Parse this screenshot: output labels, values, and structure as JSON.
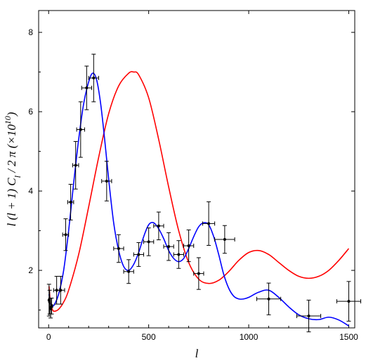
{
  "chart_data": {
    "type": "line",
    "xlabel": "l",
    "ylabel": "l (l + 1) C",
    "ylabel_sub": "l",
    "ylabel_tail": " / 2 π (×10",
    "ylabel_sup": "10",
    "ylabel_close": ")",
    "xlim": [
      -50,
      1530
    ],
    "ylim": [
      0.55,
      8.55
    ],
    "xticks": [
      0,
      500,
      1000,
      1500
    ],
    "xtick_labels": [
      "0",
      "500",
      "1000",
      "1500"
    ],
    "yticks": [
      2,
      4,
      6,
      8
    ],
    "ytick_labels": [
      "2",
      "4",
      "6",
      "8"
    ],
    "grid": false,
    "legend": "none",
    "series": [
      {
        "color": "#ff0000",
        "x": [
          2,
          5,
          10,
          20,
          30,
          50,
          75,
          100,
          150,
          200,
          250,
          300,
          350,
          400,
          425,
          450,
          500,
          550,
          600,
          650,
          700,
          750,
          800,
          850,
          900,
          950,
          1000,
          1050,
          1100,
          1150,
          1200,
          1250,
          1300,
          1350,
          1400,
          1450,
          1500
        ],
        "y": [
          1.6,
          1.4,
          1.15,
          1.0,
          0.97,
          1.02,
          1.2,
          1.5,
          2.4,
          3.6,
          4.85,
          5.95,
          6.65,
          6.97,
          7.0,
          6.93,
          6.35,
          5.3,
          4.1,
          3.0,
          2.2,
          1.78,
          1.67,
          1.75,
          1.97,
          2.25,
          2.45,
          2.5,
          2.4,
          2.2,
          2.0,
          1.85,
          1.8,
          1.85,
          2.0,
          2.25,
          2.55
        ]
      },
      {
        "color": "#0000ff",
        "x": [
          2,
          10,
          20,
          30,
          50,
          75,
          100,
          125,
          150,
          175,
          200,
          220,
          240,
          260,
          280,
          300,
          325,
          350,
          375,
          400,
          425,
          450,
          475,
          500,
          525,
          550,
          575,
          600,
          625,
          650,
          675,
          700,
          725,
          750,
          775,
          800,
          825,
          850,
          875,
          900,
          925,
          950,
          975,
          1000,
          1050,
          1100,
          1150,
          1200,
          1250,
          1300,
          1350,
          1400,
          1450,
          1500
        ],
        "y": [
          1.4,
          1.15,
          1.1,
          1.15,
          1.4,
          2.0,
          3.0,
          4.2,
          5.3,
          6.2,
          6.75,
          6.97,
          6.8,
          6.2,
          5.3,
          4.3,
          3.2,
          2.5,
          2.1,
          2.0,
          2.15,
          2.45,
          2.85,
          3.15,
          3.2,
          3.05,
          2.8,
          2.5,
          2.3,
          2.22,
          2.3,
          2.55,
          2.85,
          3.1,
          3.2,
          3.15,
          2.85,
          2.4,
          1.9,
          1.55,
          1.35,
          1.28,
          1.28,
          1.32,
          1.45,
          1.5,
          1.32,
          1.08,
          0.88,
          0.78,
          0.76,
          0.82,
          0.75,
          0.6
        ]
      }
    ],
    "errorbars": {
      "x": [
        2,
        5,
        10,
        15,
        40,
        60,
        85,
        110,
        135,
        160,
        190,
        225,
        290,
        350,
        400,
        450,
        500,
        550,
        600,
        650,
        700,
        750,
        800,
        880,
        1100,
        1300,
        1500
      ],
      "y": [
        1.25,
        1.2,
        1.05,
        1.1,
        1.5,
        1.5,
        2.9,
        3.72,
        4.65,
        5.55,
        6.6,
        6.85,
        4.25,
        2.55,
        1.97,
        2.4,
        2.72,
        3.12,
        2.6,
        2.4,
        2.62,
        1.92,
        3.18,
        2.78,
        1.28,
        0.85,
        1.22
      ],
      "xerr": [
        2,
        2,
        3,
        5,
        15,
        20,
        15,
        15,
        15,
        20,
        25,
        25,
        25,
        25,
        25,
        25,
        25,
        25,
        25,
        25,
        25,
        25,
        30,
        50,
        60,
        60,
        60
      ],
      "yerr": [
        0.4,
        0.3,
        0.25,
        0.2,
        0.35,
        0.35,
        0.4,
        0.45,
        0.6,
        0.7,
        0.55,
        0.6,
        0.5,
        0.35,
        0.3,
        0.3,
        0.35,
        0.35,
        0.35,
        0.35,
        0.4,
        0.4,
        0.55,
        0.35,
        0.4,
        0.4,
        0.5
      ]
    }
  }
}
